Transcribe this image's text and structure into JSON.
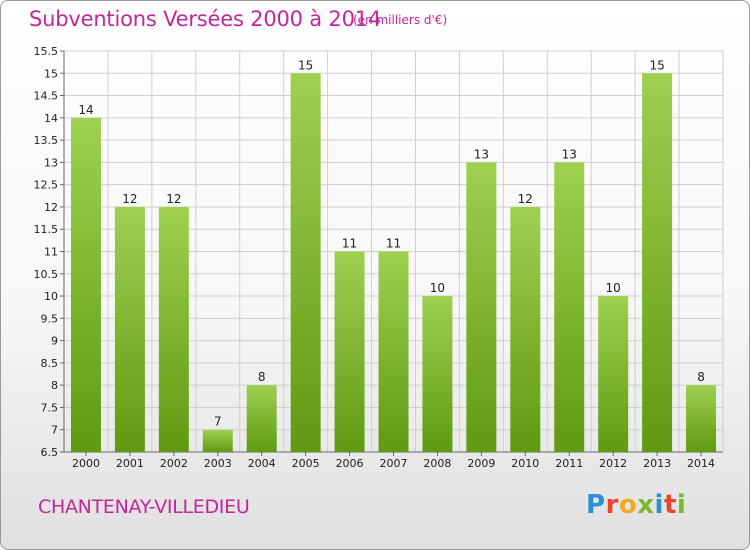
{
  "title": "Subventions Versées 2000 à 2014",
  "subtitle": "(en milliers d'€)",
  "commune": "CHANTENAY-VILLEDIEU",
  "logo": {
    "letters": [
      "P",
      "r",
      "o",
      "x",
      "i",
      "t",
      "i"
    ],
    "colors": [
      "#2a8fd6",
      "#e8442a",
      "#f5a623",
      "#7ab82e",
      "#2a8fd6",
      "#e8442a",
      "#7ab82e"
    ]
  },
  "colors": {
    "bar_light": "#9fd050",
    "bar_dark": "#5f9a12",
    "grid": "#cfcfcf",
    "accent": "#c2279a"
  },
  "chart_data": {
    "type": "bar",
    "categories": [
      "2000",
      "2001",
      "2002",
      "2003",
      "2004",
      "2005",
      "2006",
      "2007",
      "2008",
      "2009",
      "2010",
      "2011",
      "2012",
      "2013",
      "2014"
    ],
    "values": [
      14,
      12,
      12,
      7,
      8,
      15,
      11,
      11,
      10,
      13,
      12,
      13,
      10,
      15,
      8
    ],
    "yticks": [
      6.5,
      7,
      7.5,
      8,
      8.5,
      9,
      9.5,
      10,
      10.5,
      11,
      11.5,
      12,
      12.5,
      13,
      13.5,
      14,
      14.5,
      15,
      15.5
    ],
    "ytick_labels": [
      "6.5",
      "7",
      "7.5",
      "8",
      "8.5",
      "9",
      "9.5",
      "10",
      "10.5",
      "11",
      "11.5",
      "12",
      "12.5",
      "13",
      "13.5",
      "14",
      "14.5",
      "15",
      "15.5"
    ],
    "ylim": [
      6.5,
      15.5
    ],
    "grid": true,
    "data_labels": true
  }
}
